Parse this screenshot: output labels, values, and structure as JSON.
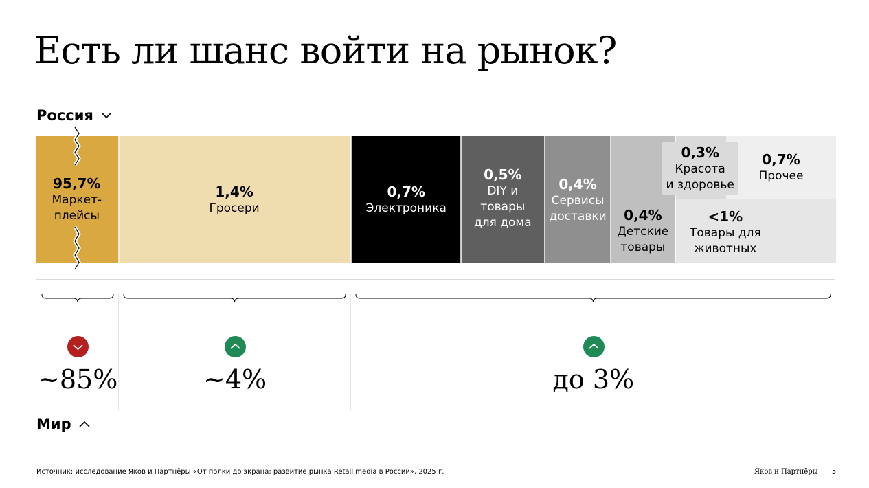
{
  "title": "Есть ли шанс войти на рынок?",
  "sections": {
    "russia": "Россия",
    "world": "Мир"
  },
  "chart_data": {
    "type": "bar",
    "segments": [
      {
        "value_label": "95,7%",
        "label_lines": [
          "Маркет-",
          "плейсы"
        ],
        "color": "#d9a841",
        "text_color": "#000000"
      },
      {
        "value_label": "1,4%",
        "label_lines": [
          "Гросери"
        ],
        "color": "#efddb0",
        "text_color": "#000000"
      },
      {
        "value_label": "0,7%",
        "label_lines": [
          "Электроника"
        ],
        "color": "#000000",
        "text_color": "#ffffff"
      },
      {
        "value_label": "0,5%",
        "label_lines": [
          "DIY и",
          "товары",
          "для дома"
        ],
        "color": "#5f5f5f",
        "text_color": "#ffffff"
      },
      {
        "value_label": "0,4%",
        "label_lines": [
          "Сервисы",
          "доставки"
        ],
        "color": "#8f8f8f",
        "text_color": "#ffffff"
      },
      {
        "value_label": "0,4%",
        "label_lines": [
          "Детские",
          "товары"
        ],
        "color": "#bfbfbf",
        "text_color": "#000000"
      },
      {
        "value_label": "0,3%",
        "label_lines": [
          "Красота",
          "и здоровье"
        ],
        "color": "#dadada",
        "text_color": "#000000"
      },
      {
        "value_label": "<1%",
        "label_lines": [
          "Товары для",
          "животных"
        ],
        "color": "#e6e6e6",
        "text_color": "#000000"
      },
      {
        "value_label": "0,7%",
        "label_lines": [
          "Прочее"
        ],
        "color": "#efefef",
        "text_color": "#000000"
      }
    ],
    "groups": [
      {
        "value": "~85%",
        "trend": "down",
        "color": "#b3201f"
      },
      {
        "value": "~4%",
        "trend": "up",
        "color": "#1f8a55"
      },
      {
        "value": "до 3%",
        "trend": "up",
        "color": "#1f8a55"
      }
    ]
  },
  "footer": {
    "source": "Источник: исследование Яков и Партнёры «От полки до экрана: развитие рынка Retail  media в России», 2025 г.",
    "brand": "Яков и Партнёры",
    "page": "5"
  }
}
